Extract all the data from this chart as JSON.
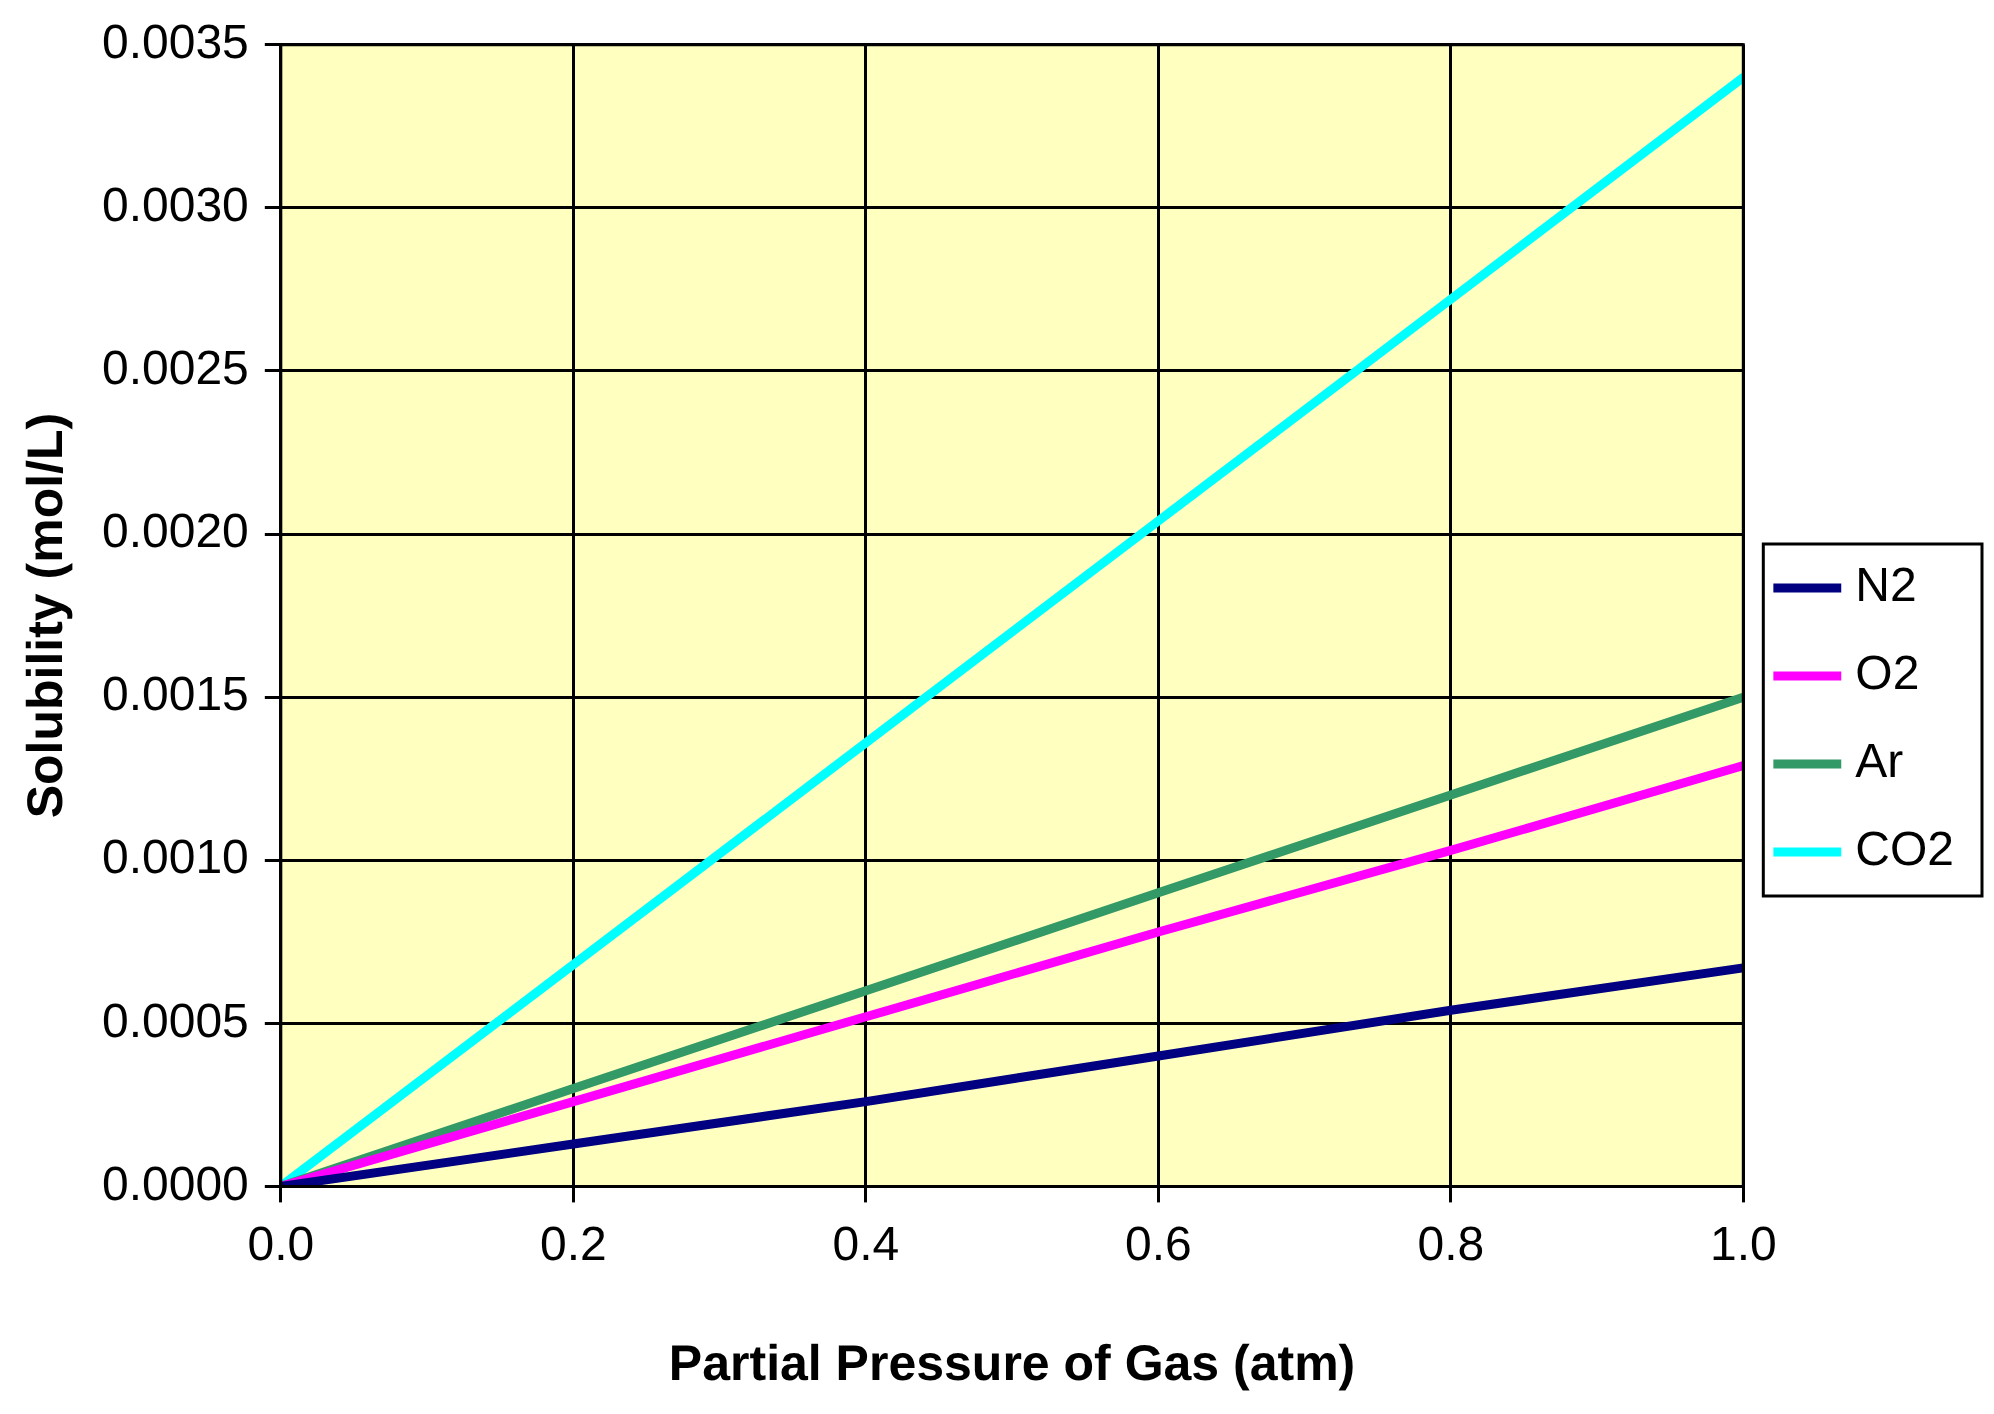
{
  "chart_data": {
    "type": "line",
    "xlabel": "Partial Pressure of Gas (atm)",
    "ylabel": "Solubility (mol/L)",
    "x": [
      0,
      0.2,
      0.4,
      0.6,
      0.8,
      1.0
    ],
    "series": [
      {
        "name": "N2",
        "color": "#000080",
        "values": [
          0,
          0.00013,
          0.00026,
          0.0004,
          0.00054,
          0.00067
        ]
      },
      {
        "name": "O2",
        "color": "#ff00ff",
        "values": [
          0,
          0.00026,
          0.00052,
          0.00078,
          0.00103,
          0.00129
        ]
      },
      {
        "name": "Ar",
        "color": "#339966",
        "values": [
          0,
          0.0003,
          0.0006,
          0.0009,
          0.0012,
          0.0015
        ]
      },
      {
        "name": "CO2",
        "color": "#00ffff",
        "values": [
          0,
          0.00068,
          0.00136,
          0.00204,
          0.00272,
          0.0034
        ]
      }
    ],
    "xlim": [
      0,
      1.0
    ],
    "xticks": [
      {
        "value": 0,
        "label": "0.0"
      },
      {
        "value": 0.2,
        "label": "0.2"
      },
      {
        "value": 0.4,
        "label": "0.4"
      },
      {
        "value": 0.6,
        "label": "0.6"
      },
      {
        "value": 0.8,
        "label": "0.8"
      },
      {
        "value": 1.0,
        "label": "1.0"
      }
    ],
    "ylim": [
      0,
      0.0035
    ],
    "yticks": [
      {
        "value": 0,
        "label": "0.0000"
      },
      {
        "value": 0.0005,
        "label": "0.0005"
      },
      {
        "value": 0.001,
        "label": "0.0010"
      },
      {
        "value": 0.0015,
        "label": "0.0015"
      },
      {
        "value": 0.002,
        "label": "0.0020"
      },
      {
        "value": 0.0025,
        "label": "0.0025"
      },
      {
        "value": 0.003,
        "label": "0.0030"
      },
      {
        "value": 0.0035,
        "label": "0.0035"
      }
    ],
    "grid": true,
    "legend": "right",
    "marker": "none",
    "line_style": "solid"
  }
}
